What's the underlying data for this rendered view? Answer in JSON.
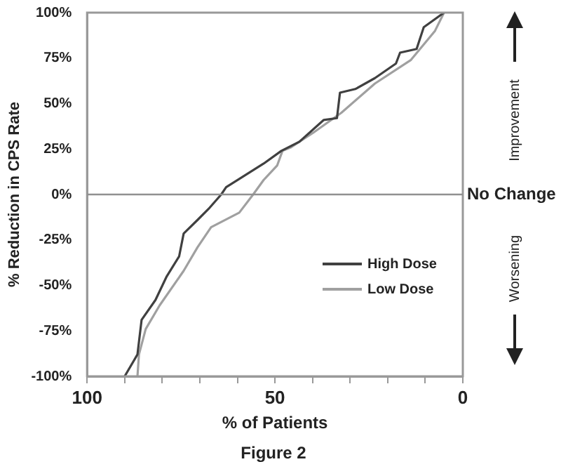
{
  "chart_data": {
    "type": "line",
    "xlabel": "% of Patients",
    "ylabel": "% Reduction in CPS Rate",
    "xlim": [
      100,
      0
    ],
    "ylim": [
      -100,
      100
    ],
    "xticks": [
      100,
      {
        "value": 90,
        "label": null
      },
      {
        "value": 80,
        "label": null
      },
      {
        "value": 70,
        "label": null
      },
      {
        "value": 60,
        "label": null
      },
      50,
      {
        "value": 40,
        "label": null
      },
      {
        "value": 30,
        "label": null
      },
      {
        "value": 20,
        "label": null
      },
      {
        "value": 10,
        "label": null
      },
      0
    ],
    "yticks": [
      {
        "value": -100,
        "label": "-100%"
      },
      {
        "value": -75,
        "label": "-75%"
      },
      {
        "value": -50,
        "label": "-50%"
      },
      {
        "value": -25,
        "label": "-25%"
      },
      {
        "value": 0,
        "label": "0%"
      },
      {
        "value": 25,
        "label": "25%"
      },
      {
        "value": 50,
        "label": "50%"
      },
      {
        "value": 75,
        "label": "75%"
      },
      {
        "value": 100,
        "label": "100%"
      }
    ],
    "series": [
      {
        "name": "High Dose",
        "color": "#404040",
        "x": [
          90,
          86.6,
          85.5,
          81.8,
          78.8,
          75.5,
          74.3,
          70.6,
          67.7,
          64.3,
          63,
          53,
          48.3,
          43.5,
          37,
          33.5,
          32.7,
          28.6,
          23.4,
          17.8,
          16.7,
          12.3,
          10.4,
          5
        ],
        "values": [
          -100,
          -88,
          -69,
          -58,
          -45,
          -34,
          -21.5,
          -14,
          -8,
          0,
          4,
          17,
          24,
          29,
          41,
          42,
          56,
          58,
          64,
          72,
          78,
          80,
          92,
          100
        ]
      },
      {
        "name": "Low Dose",
        "color": "#a0a0a0",
        "x": [
          86.6,
          86.2,
          84.4,
          80.7,
          74.3,
          70.6,
          67,
          59.5,
          55.8,
          53,
          49.4,
          48,
          45.7,
          39.8,
          32.3,
          23.4,
          13.8,
          7.4,
          5
        ],
        "values": [
          -100,
          -88,
          -74,
          -61,
          -42,
          -29,
          -18,
          -10,
          0,
          8,
          16,
          24,
          26,
          34,
          45,
          61,
          74,
          90,
          100
        ]
      }
    ],
    "ref_lines": [
      {
        "axis": "y",
        "value": 0,
        "label": "No Change",
        "color": "#909090"
      }
    ],
    "legend": "bottom right",
    "grid": false,
    "marker": "none",
    "line_style": "solid",
    "annotations": [
      "Improvement",
      "Worsening",
      "Figure 2"
    ]
  }
}
